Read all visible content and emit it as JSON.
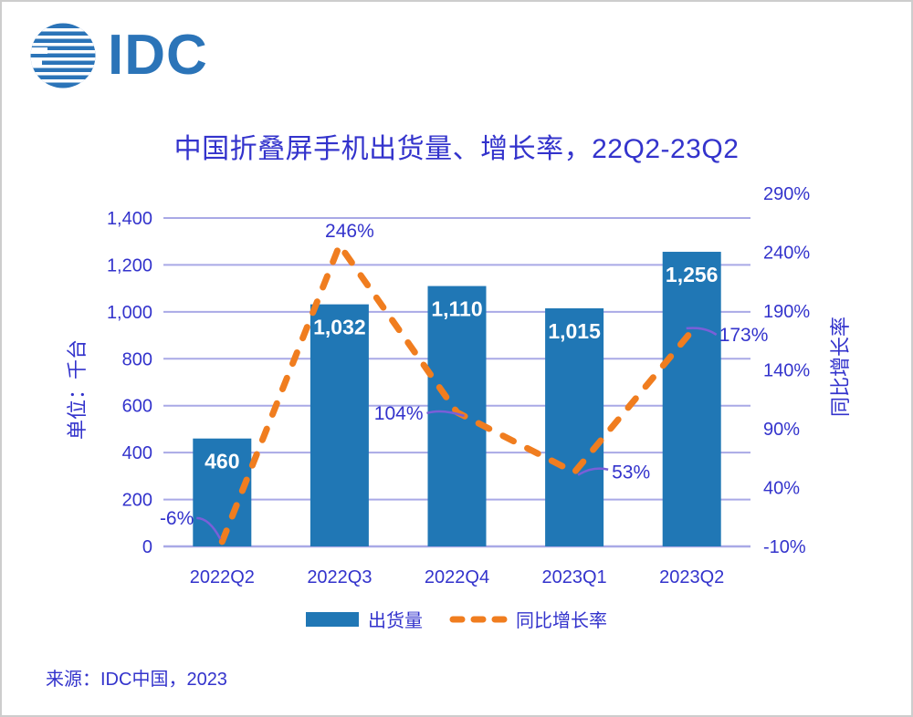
{
  "logo": {
    "text": "IDC"
  },
  "chart_data": {
    "type": "bar+line",
    "title": "中国折叠屏手机出货量、增长率，22Q2-23Q2",
    "categories": [
      "2022Q2",
      "2022Q3",
      "2022Q4",
      "2023Q1",
      "2023Q2"
    ],
    "series": [
      {
        "name": "出货量",
        "type": "bar",
        "axis": "left",
        "values": [
          460,
          1032,
          1110,
          1015,
          1256
        ],
        "labels": [
          "460",
          "1,032",
          "1,110",
          "1,015",
          "1,256"
        ]
      },
      {
        "name": "同比增长率",
        "type": "line",
        "axis": "right",
        "style": "dashed",
        "values": [
          -6,
          246,
          104,
          53,
          173
        ],
        "labels": [
          "-6%",
          "246%",
          "104%",
          "53%",
          "173%"
        ]
      }
    ],
    "left_axis": {
      "title": "单位：千台",
      "min": 0,
      "max": 1400,
      "ticks": [
        "1,400",
        "1,200",
        "1,000",
        "800",
        "600",
        "400",
        "200",
        "0"
      ]
    },
    "right_axis": {
      "title": "同比增长率",
      "min": -10,
      "max": 290,
      "ticks": [
        "290%",
        "240%",
        "190%",
        "140%",
        "90%",
        "40%",
        "-10%"
      ]
    },
    "grid": true,
    "legend_position": "bottom"
  },
  "source": "来源：IDC中国，2023",
  "colors": {
    "bar": "#2077b5",
    "line": "#f07d1f",
    "grid": "#a9a9e6",
    "text": "#3333cc",
    "bar_label": "#ffffff",
    "leader": "#7a5fd8",
    "logo": "#2b74b8"
  }
}
